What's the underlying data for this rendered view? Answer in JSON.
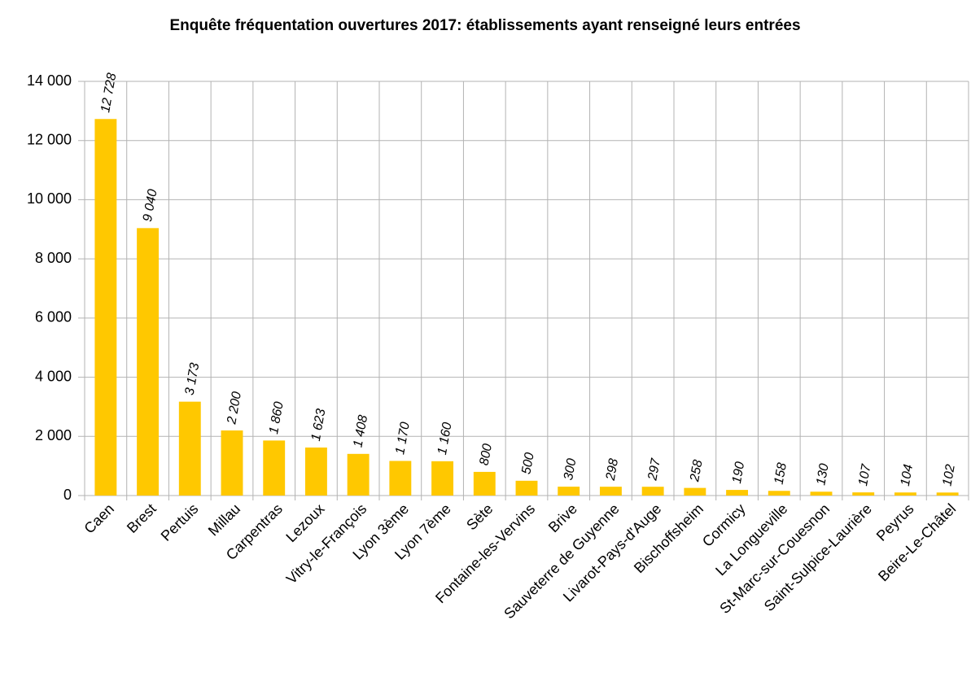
{
  "chart_data": {
    "type": "bar",
    "title": "Enquête fréquentation ouvertures 2017: établissements ayant renseigné leurs entrées",
    "categories": [
      "Caen",
      "Brest",
      "Pertuis",
      "Millau",
      "Carpentras",
      "Lezoux",
      "Vitry-le-François",
      "Lyon 3ème",
      "Lyon 7ème",
      "Sète",
      "Fontaine-les-Vervins",
      "Brive",
      "Sauveterre de Guyenne",
      "Livarot-Pays-d'Auge",
      "Bischoffsheim",
      "Cormicy",
      "La Longueville",
      "St-Marc-sur-Couesnon",
      "Saint-Sulpice-Laurière",
      "Peyrus",
      "Beire-Le-Châtel"
    ],
    "values": [
      12728,
      9040,
      3173,
      2200,
      1860,
      1623,
      1408,
      1170,
      1160,
      800,
      500,
      300,
      298,
      297,
      258,
      190,
      158,
      130,
      107,
      104,
      102
    ],
    "value_labels": [
      "12 728",
      "9 040",
      "3 173",
      "2 200",
      "1 860",
      "1 623",
      "1 408",
      "1 170",
      "1 160",
      "800",
      "500",
      "300",
      "298",
      "297",
      "258",
      "190",
      "158",
      "130",
      "107",
      "104",
      "102"
    ],
    "color": "#ffc800",
    "ylim": [
      0,
      14000
    ],
    "yticks": [
      0,
      {
        "value": 2000,
        "label": "2 000"
      },
      {
        "value": 4000,
        "label": "4 000"
      },
      {
        "value": 6000,
        "label": "6 000"
      },
      {
        "value": 8000,
        "label": "8 000"
      },
      {
        "value": 10000,
        "label": "10 000"
      },
      {
        "value": 12000,
        "label": "12 000"
      },
      {
        "value": 14000,
        "label": "14 000"
      }
    ],
    "grid": true
  }
}
